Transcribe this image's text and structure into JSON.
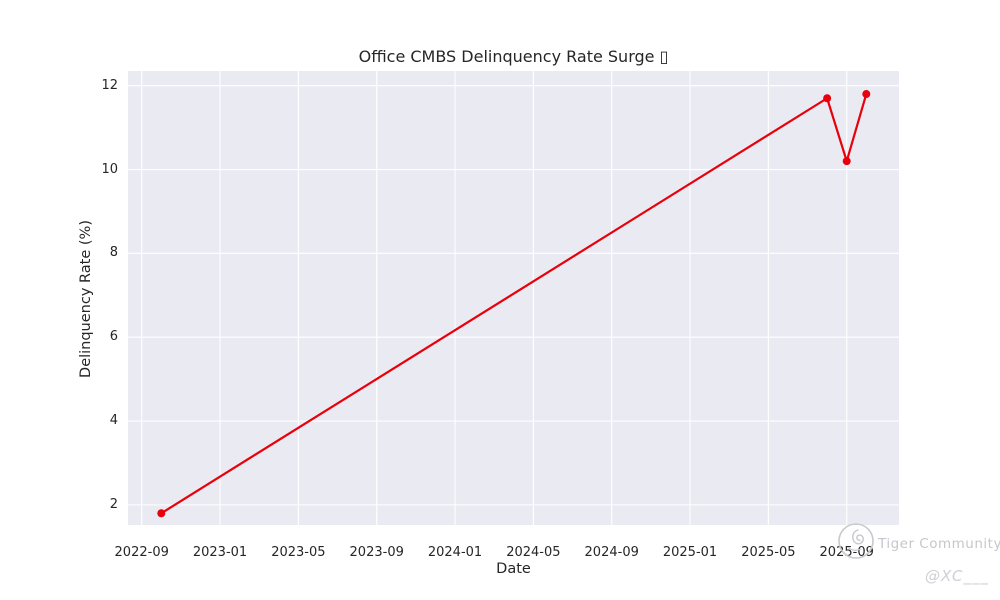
{
  "chart_data": {
    "type": "line",
    "title": "Office CMBS Delinquency Rate Surge ▯",
    "xlabel": "Date",
    "ylabel": "Delinquency Rate (%)",
    "plot_background": "#eaeaf2",
    "grid": true,
    "grid_color": "#ffffff",
    "legend": "none",
    "series": [
      {
        "name": "Office CMBS Delinquency Rate",
        "color": "#e8000b",
        "line_width": 2.2,
        "marker_radius": 4,
        "points": [
          {
            "date": "2022-10",
            "month_index": 1,
            "value": 1.8
          },
          {
            "date": "2025-08",
            "month_index": 35,
            "value": 11.7
          },
          {
            "date": "2025-09",
            "month_index": 36,
            "value": 10.2
          },
          {
            "date": "2025-10",
            "month_index": 37,
            "value": 11.8
          }
        ]
      }
    ],
    "x_ticks": [
      {
        "label": "2022-09",
        "month_index": 0
      },
      {
        "label": "2023-01",
        "month_index": 4
      },
      {
        "label": "2023-05",
        "month_index": 8
      },
      {
        "label": "2023-09",
        "month_index": 12
      },
      {
        "label": "2024-01",
        "month_index": 16
      },
      {
        "label": "2024-05",
        "month_index": 20
      },
      {
        "label": "2024-09",
        "month_index": 24
      },
      {
        "label": "2025-01",
        "month_index": 28
      },
      {
        "label": "2025-05",
        "month_index": 32
      },
      {
        "label": "2025-09",
        "month_index": 36
      }
    ],
    "y_ticks": [
      2,
      4,
      6,
      8,
      10,
      12
    ],
    "xlim_month_index": [
      -0.7,
      38.67
    ],
    "ylim": [
      1.52,
      12.35
    ]
  },
  "watermark": {
    "brand": "Tiger Community",
    "handle": "@XC___",
    "color": "#c6c6cc"
  }
}
